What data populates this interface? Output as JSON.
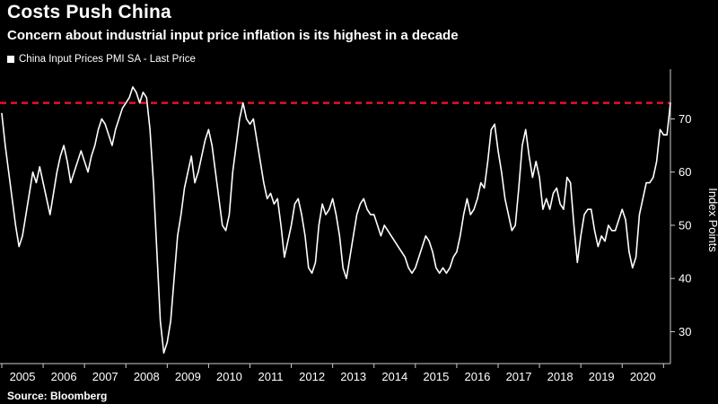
{
  "header": {
    "title": "Costs Push China",
    "subtitle": "Concern about industrial input price inflation is its highest in a decade"
  },
  "legend": {
    "label": "China Input Prices PMI SA - Last Price"
  },
  "footer": {
    "source": "Source: Bloomberg"
  },
  "colors": {
    "background": "#000000",
    "text": "#ffffff",
    "series_line": "#ffffff",
    "reference_line_red": "#e8112d",
    "axis": "#cccccc"
  },
  "chart_data": {
    "type": "line",
    "title": "Costs Push China",
    "subtitle": "Concern about industrial input price inflation is its highest in a decade",
    "series_name": "China Input Prices PMI SA - Last Price",
    "ylabel": "Index Points",
    "yticks": [
      30,
      40,
      50,
      60,
      70
    ],
    "ylim": [
      24,
      78
    ],
    "x_start_year": 2005,
    "points_per_year": 12,
    "x_tick_labels": [
      "2005",
      "2006",
      "2007",
      "2008",
      "2009",
      "2010",
      "2011",
      "2012",
      "2013",
      "2014",
      "2015",
      "2016",
      "2017",
      "2018",
      "2019",
      "2020"
    ],
    "reference_line_value": 73,
    "legend_position": "top-left",
    "grid": false,
    "values": [
      71,
      65,
      60,
      55,
      50,
      46,
      48,
      52,
      56,
      60,
      58,
      61,
      58,
      55,
      52,
      56,
      60,
      63,
      65,
      62,
      58,
      60,
      62,
      64,
      62,
      60,
      63,
      65,
      68,
      70,
      69,
      67,
      65,
      68,
      70,
      72,
      73,
      74,
      76,
      75,
      73,
      75,
      74,
      68,
      58,
      45,
      32,
      26,
      28,
      32,
      40,
      48,
      52,
      57,
      60,
      63,
      58,
      60,
      63,
      66,
      68,
      65,
      60,
      55,
      50,
      49,
      52,
      60,
      65,
      70,
      73,
      70,
      69,
      70,
      66,
      62,
      58,
      55,
      56,
      54,
      55,
      50,
      44,
      47,
      50,
      54,
      55,
      52,
      48,
      42,
      41,
      43,
      50,
      54,
      52,
      53,
      55,
      52,
      48,
      42,
      40,
      44,
      48,
      52,
      54,
      55,
      53,
      52,
      52,
      50,
      48,
      50,
      49,
      48,
      47,
      46,
      45,
      44,
      42,
      41,
      42,
      44,
      46,
      48,
      47,
      45,
      42,
      41,
      42,
      41,
      42,
      44,
      45,
      48,
      52,
      55,
      52,
      53,
      55,
      58,
      57,
      62,
      68,
      69,
      64,
      60,
      55,
      52,
      49,
      50,
      57,
      65,
      68,
      63,
      59,
      62,
      59,
      53,
      55,
      53,
      56,
      57,
      54,
      53,
      59,
      58,
      50,
      43,
      48,
      52,
      53,
      53,
      49,
      46,
      48,
      47,
      50,
      49,
      49,
      51,
      53,
      51,
      45,
      42,
      44,
      52,
      55,
      58,
      58,
      59,
      62,
      68,
      67,
      67,
      73
    ]
  }
}
